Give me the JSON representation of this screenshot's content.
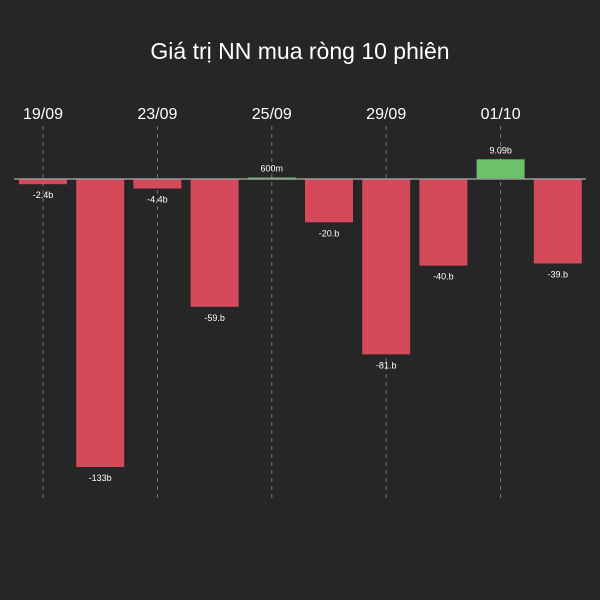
{
  "chart_data": {
    "type": "bar",
    "title": "Giá trị NN mua ròng 10 phiên",
    "xlabel": "",
    "ylabel": "",
    "tick_labels": [
      "19/09",
      "23/09",
      "25/09",
      "29/09",
      "01/10"
    ],
    "values": [
      -2.4,
      -133,
      -4.4,
      -59,
      0.6,
      -20,
      -81,
      -40,
      9.09,
      -39
    ],
    "value_labels": [
      "-2.4b",
      "-133b",
      "-4.4b",
      "-59.b",
      "600m",
      "-20.b",
      "-81.b",
      "-40.b",
      "9.09b",
      "-39.b"
    ],
    "ylim": [
      -133,
      9.09
    ],
    "grid": "vertical dashed",
    "colors": {
      "positive": "#6cc26b",
      "negative": "#d44a5b",
      "background": "#262626",
      "text": "#ffffff",
      "zero_line": "#9a9a9a",
      "grid": "#777777"
    }
  }
}
